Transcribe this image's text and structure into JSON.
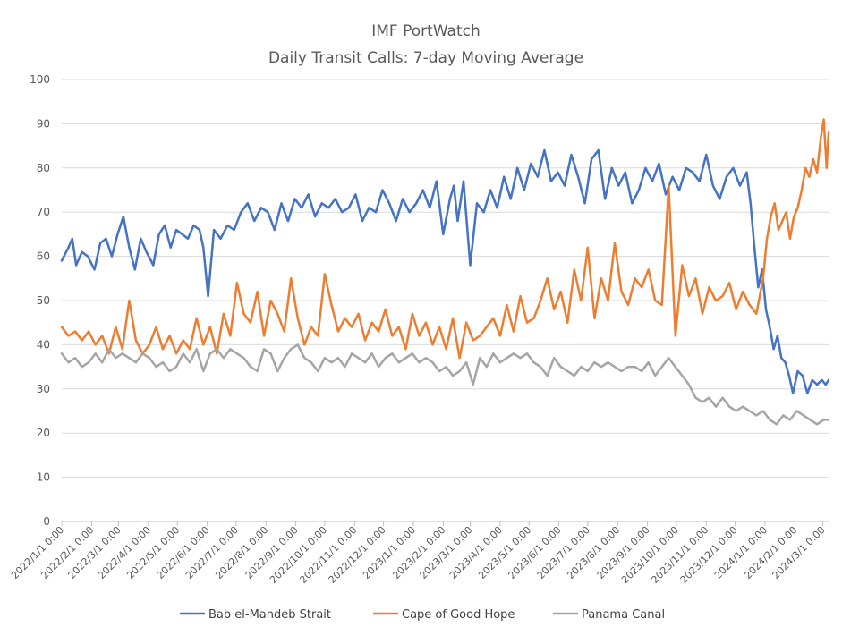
{
  "chart_data": {
    "type": "line",
    "title": "IMF PortWatch",
    "subtitle": "Daily Transit Calls: 7-day Moving Average",
    "xlabel": "",
    "ylabel": "",
    "ylim": [
      0,
      100
    ],
    "yticks": [
      0,
      10,
      20,
      30,
      40,
      50,
      60,
      70,
      80,
      90,
      100
    ],
    "xlim": [
      "2022/1/1 0:00",
      "2024/3/7 0:00"
    ],
    "xticks": [
      "2022/1/1 0:00",
      "2022/2/1 0:00",
      "2022/3/1 0:00",
      "2022/4/1 0:00",
      "2022/5/1 0:00",
      "2022/6/1 0:00",
      "2022/7/1 0:00",
      "2022/8/1 0:00",
      "2022/9/1 0:00",
      "2022/10/1 0:00",
      "2022/11/1 0:00",
      "2022/12/1 0:00",
      "2023/1/1 0:00",
      "2023/2/1 0:00",
      "2023/3/1 0:00",
      "2023/4/1 0:00",
      "2023/5/1 0:00",
      "2023/6/1 0:00",
      "2023/7/1 0:00",
      "2023/8/1 0:00",
      "2023/9/1 0:00",
      "2023/10/1 0:00",
      "2023/11/1 0:00",
      "2023/12/1 0:00",
      "2024/1/1 0:00",
      "2024/2/1 0:00",
      "2024/3/1 0:00"
    ],
    "grid": "horizontal",
    "legend_position": "bottom",
    "series": [
      {
        "name": "Bab el-Mandeb Strait",
        "color": "#4472C4",
        "x": [
          "2022-01-01",
          "2022-01-08",
          "2022-01-12",
          "2022-01-16",
          "2022-01-22",
          "2022-01-28",
          "2022-02-04",
          "2022-02-10",
          "2022-02-16",
          "2022-02-22",
          "2022-02-28",
          "2022-03-06",
          "2022-03-12",
          "2022-03-18",
          "2022-03-24",
          "2022-03-30",
          "2022-04-06",
          "2022-04-12",
          "2022-04-18",
          "2022-04-24",
          "2022-04-30",
          "2022-05-06",
          "2022-05-12",
          "2022-05-18",
          "2022-05-24",
          "2022-05-28",
          "2022-06-02",
          "2022-06-08",
          "2022-06-15",
          "2022-06-22",
          "2022-06-29",
          "2022-07-06",
          "2022-07-13",
          "2022-07-20",
          "2022-07-27",
          "2022-08-03",
          "2022-08-10",
          "2022-08-17",
          "2022-08-24",
          "2022-08-31",
          "2022-09-07",
          "2022-09-14",
          "2022-09-21",
          "2022-09-28",
          "2022-10-05",
          "2022-10-12",
          "2022-10-19",
          "2022-10-26",
          "2022-11-02",
          "2022-11-09",
          "2022-11-16",
          "2022-11-23",
          "2022-11-30",
          "2022-12-07",
          "2022-12-14",
          "2022-12-21",
          "2022-12-28",
          "2023-01-04",
          "2023-01-11",
          "2023-01-18",
          "2023-01-25",
          "2023-02-01",
          "2023-02-08",
          "2023-02-12",
          "2023-02-16",
          "2023-02-22",
          "2023-03-01",
          "2023-03-08",
          "2023-03-15",
          "2023-03-22",
          "2023-03-29",
          "2023-04-05",
          "2023-04-12",
          "2023-04-19",
          "2023-04-26",
          "2023-05-03",
          "2023-05-10",
          "2023-05-17",
          "2023-05-24",
          "2023-05-31",
          "2023-06-07",
          "2023-06-14",
          "2023-06-21",
          "2023-06-28",
          "2023-07-05",
          "2023-07-12",
          "2023-07-19",
          "2023-07-26",
          "2023-08-02",
          "2023-08-09",
          "2023-08-16",
          "2023-08-23",
          "2023-08-30",
          "2023-09-06",
          "2023-09-13",
          "2023-09-20",
          "2023-09-27",
          "2023-10-04",
          "2023-10-11",
          "2023-10-18",
          "2023-10-25",
          "2023-11-01",
          "2023-11-08",
          "2023-11-15",
          "2023-11-22",
          "2023-11-29",
          "2023-12-06",
          "2023-12-13",
          "2023-12-17",
          "2023-12-21",
          "2023-12-25",
          "2023-12-29",
          "2024-01-02",
          "2024-01-06",
          "2024-01-10",
          "2024-01-14",
          "2024-01-18",
          "2024-01-22",
          "2024-01-26",
          "2024-01-30",
          "2024-02-04",
          "2024-02-09",
          "2024-02-14",
          "2024-02-19",
          "2024-02-24",
          "2024-02-29",
          "2024-03-04",
          "2024-03-07"
        ],
        "values": [
          59,
          62,
          64,
          58,
          61,
          60,
          57,
          63,
          64,
          60,
          65,
          69,
          62,
          57,
          64,
          61,
          58,
          65,
          67,
          62,
          66,
          65,
          64,
          67,
          66,
          62,
          51,
          66,
          64,
          67,
          66,
          70,
          72,
          68,
          71,
          70,
          66,
          72,
          68,
          73,
          71,
          74,
          69,
          72,
          71,
          73,
          70,
          71,
          74,
          68,
          71,
          70,
          75,
          72,
          68,
          73,
          70,
          72,
          75,
          71,
          77,
          65,
          73,
          76,
          68,
          77,
          58,
          72,
          70,
          75,
          71,
          78,
          73,
          80,
          75,
          81,
          78,
          84,
          77,
          79,
          76,
          83,
          78,
          72,
          82,
          84,
          73,
          80,
          76,
          79,
          72,
          75,
          80,
          77,
          81,
          74,
          78,
          75,
          80,
          79,
          77,
          83,
          76,
          73,
          78,
          80,
          76,
          79,
          72,
          62,
          53,
          57,
          48,
          44,
          39,
          42,
          37,
          36,
          33,
          29,
          34,
          33,
          29,
          32,
          31,
          32,
          31,
          32
        ],
        "label_style": "line"
      },
      {
        "name": "Cape of Good Hope",
        "color": "#ED7D31",
        "x": [
          "2022-01-01",
          "2022-01-08",
          "2022-01-15",
          "2022-01-22",
          "2022-01-29",
          "2022-02-05",
          "2022-02-12",
          "2022-02-19",
          "2022-02-26",
          "2022-03-05",
          "2022-03-12",
          "2022-03-19",
          "2022-03-26",
          "2022-04-02",
          "2022-04-09",
          "2022-04-16",
          "2022-04-23",
          "2022-04-30",
          "2022-05-07",
          "2022-05-14",
          "2022-05-21",
          "2022-05-28",
          "2022-06-04",
          "2022-06-11",
          "2022-06-18",
          "2022-06-25",
          "2022-07-02",
          "2022-07-09",
          "2022-07-16",
          "2022-07-23",
          "2022-07-30",
          "2022-08-06",
          "2022-08-13",
          "2022-08-20",
          "2022-08-27",
          "2022-09-03",
          "2022-09-10",
          "2022-09-17",
          "2022-09-24",
          "2022-10-01",
          "2022-10-08",
          "2022-10-15",
          "2022-10-22",
          "2022-10-29",
          "2022-11-05",
          "2022-11-12",
          "2022-11-19",
          "2022-11-26",
          "2022-12-03",
          "2022-12-10",
          "2022-12-17",
          "2022-12-24",
          "2022-12-31",
          "2023-01-07",
          "2023-01-14",
          "2023-01-21",
          "2023-01-28",
          "2023-02-04",
          "2023-02-11",
          "2023-02-18",
          "2023-02-25",
          "2023-03-04",
          "2023-03-11",
          "2023-03-18",
          "2023-03-25",
          "2023-04-01",
          "2023-04-08",
          "2023-04-15",
          "2023-04-22",
          "2023-04-29",
          "2023-05-06",
          "2023-05-13",
          "2023-05-20",
          "2023-05-27",
          "2023-06-03",
          "2023-06-10",
          "2023-06-17",
          "2023-06-24",
          "2023-07-01",
          "2023-07-08",
          "2023-07-15",
          "2023-07-22",
          "2023-07-29",
          "2023-08-05",
          "2023-08-12",
          "2023-08-19",
          "2023-08-26",
          "2023-09-02",
          "2023-09-09",
          "2023-09-16",
          "2023-09-23",
          "2023-09-30",
          "2023-10-07",
          "2023-10-14",
          "2023-10-21",
          "2023-10-28",
          "2023-11-04",
          "2023-11-11",
          "2023-11-18",
          "2023-11-25",
          "2023-12-02",
          "2023-12-09",
          "2023-12-16",
          "2023-12-23",
          "2023-12-30",
          "2024-01-03",
          "2024-01-07",
          "2024-01-11",
          "2024-01-15",
          "2024-01-19",
          "2024-01-23",
          "2024-01-27",
          "2024-01-31",
          "2024-02-04",
          "2024-02-08",
          "2024-02-12",
          "2024-02-16",
          "2024-02-20",
          "2024-02-24",
          "2024-02-28",
          "2024-03-02",
          "2024-03-05",
          "2024-03-07"
        ],
        "values": [
          44,
          42,
          43,
          41,
          43,
          40,
          42,
          38,
          44,
          39,
          50,
          41,
          38,
          40,
          44,
          39,
          42,
          38,
          41,
          39,
          46,
          40,
          44,
          38,
          47,
          42,
          54,
          47,
          45,
          52,
          42,
          50,
          47,
          43,
          55,
          46,
          40,
          44,
          42,
          56,
          49,
          43,
          46,
          44,
          47,
          41,
          45,
          43,
          48,
          42,
          44,
          39,
          47,
          42,
          45,
          40,
          44,
          39,
          46,
          37,
          45,
          41,
          42,
          44,
          46,
          42,
          49,
          43,
          51,
          45,
          46,
          50,
          55,
          48,
          52,
          45,
          57,
          50,
          62,
          46,
          55,
          50,
          63,
          52,
          49,
          55,
          53,
          57,
          50,
          49,
          76,
          42,
          58,
          51,
          55,
          47,
          53,
          50,
          51,
          54,
          48,
          52,
          49,
          47,
          55,
          64,
          69,
          72,
          66,
          68,
          70,
          64,
          69,
          71,
          75,
          80,
          78,
          82,
          79,
          87,
          91,
          80,
          88
        ],
        "label_style": "line"
      },
      {
        "name": "Panama Canal",
        "color": "#A5A5A5",
        "x": [
          "2022-01-01",
          "2022-01-08",
          "2022-01-15",
          "2022-01-22",
          "2022-01-29",
          "2022-02-05",
          "2022-02-12",
          "2022-02-19",
          "2022-02-26",
          "2022-03-05",
          "2022-03-12",
          "2022-03-19",
          "2022-03-26",
          "2022-04-02",
          "2022-04-09",
          "2022-04-16",
          "2022-04-23",
          "2022-04-30",
          "2022-05-07",
          "2022-05-14",
          "2022-05-21",
          "2022-05-28",
          "2022-06-04",
          "2022-06-11",
          "2022-06-18",
          "2022-06-25",
          "2022-07-02",
          "2022-07-09",
          "2022-07-16",
          "2022-07-23",
          "2022-07-30",
          "2022-08-06",
          "2022-08-13",
          "2022-08-20",
          "2022-08-27",
          "2022-09-03",
          "2022-09-10",
          "2022-09-17",
          "2022-09-24",
          "2022-10-01",
          "2022-10-08",
          "2022-10-15",
          "2022-10-22",
          "2022-10-29",
          "2022-11-05",
          "2022-11-12",
          "2022-11-19",
          "2022-11-26",
          "2022-12-03",
          "2022-12-10",
          "2022-12-17",
          "2022-12-24",
          "2022-12-31",
          "2023-01-07",
          "2023-01-14",
          "2023-01-21",
          "2023-01-28",
          "2023-02-04",
          "2023-02-11",
          "2023-02-18",
          "2023-02-25",
          "2023-03-04",
          "2023-03-11",
          "2023-03-18",
          "2023-03-25",
          "2023-04-01",
          "2023-04-08",
          "2023-04-15",
          "2023-04-22",
          "2023-04-29",
          "2023-05-06",
          "2023-05-13",
          "2023-05-20",
          "2023-05-27",
          "2023-06-03",
          "2023-06-10",
          "2023-06-17",
          "2023-06-24",
          "2023-07-01",
          "2023-07-08",
          "2023-07-15",
          "2023-07-22",
          "2023-07-29",
          "2023-08-05",
          "2023-08-12",
          "2023-08-19",
          "2023-08-26",
          "2023-09-02",
          "2023-09-09",
          "2023-09-16",
          "2023-09-23",
          "2023-09-30",
          "2023-10-07",
          "2023-10-14",
          "2023-10-21",
          "2023-10-28",
          "2023-11-04",
          "2023-11-11",
          "2023-11-18",
          "2023-11-25",
          "2023-12-02",
          "2023-12-09",
          "2023-12-16",
          "2023-12-23",
          "2023-12-30",
          "2024-01-06",
          "2024-01-13",
          "2024-01-20",
          "2024-01-27",
          "2024-02-03",
          "2024-02-10",
          "2024-02-17",
          "2024-02-24",
          "2024-03-02",
          "2024-03-07"
        ],
        "values": [
          38,
          36,
          37,
          35,
          36,
          38,
          36,
          39,
          37,
          38,
          37,
          36,
          38,
          37,
          35,
          36,
          34,
          35,
          38,
          36,
          39,
          34,
          38,
          39,
          37,
          39,
          38,
          37,
          35,
          34,
          39,
          38,
          34,
          37,
          39,
          40,
          37,
          36,
          34,
          37,
          36,
          37,
          35,
          38,
          37,
          36,
          38,
          35,
          37,
          38,
          36,
          37,
          38,
          36,
          37,
          36,
          34,
          35,
          33,
          34,
          36,
          31,
          37,
          35,
          38,
          36,
          37,
          38,
          37,
          38,
          36,
          35,
          33,
          37,
          35,
          34,
          33,
          35,
          34,
          36,
          35,
          36,
          35,
          34,
          35,
          35,
          34,
          36,
          33,
          35,
          37,
          35,
          33,
          31,
          28,
          27,
          28,
          26,
          28,
          26,
          25,
          26,
          25,
          24,
          25,
          23,
          22,
          24,
          23,
          25,
          24,
          23,
          22,
          23,
          23
        ],
        "label_style": "line"
      }
    ]
  }
}
